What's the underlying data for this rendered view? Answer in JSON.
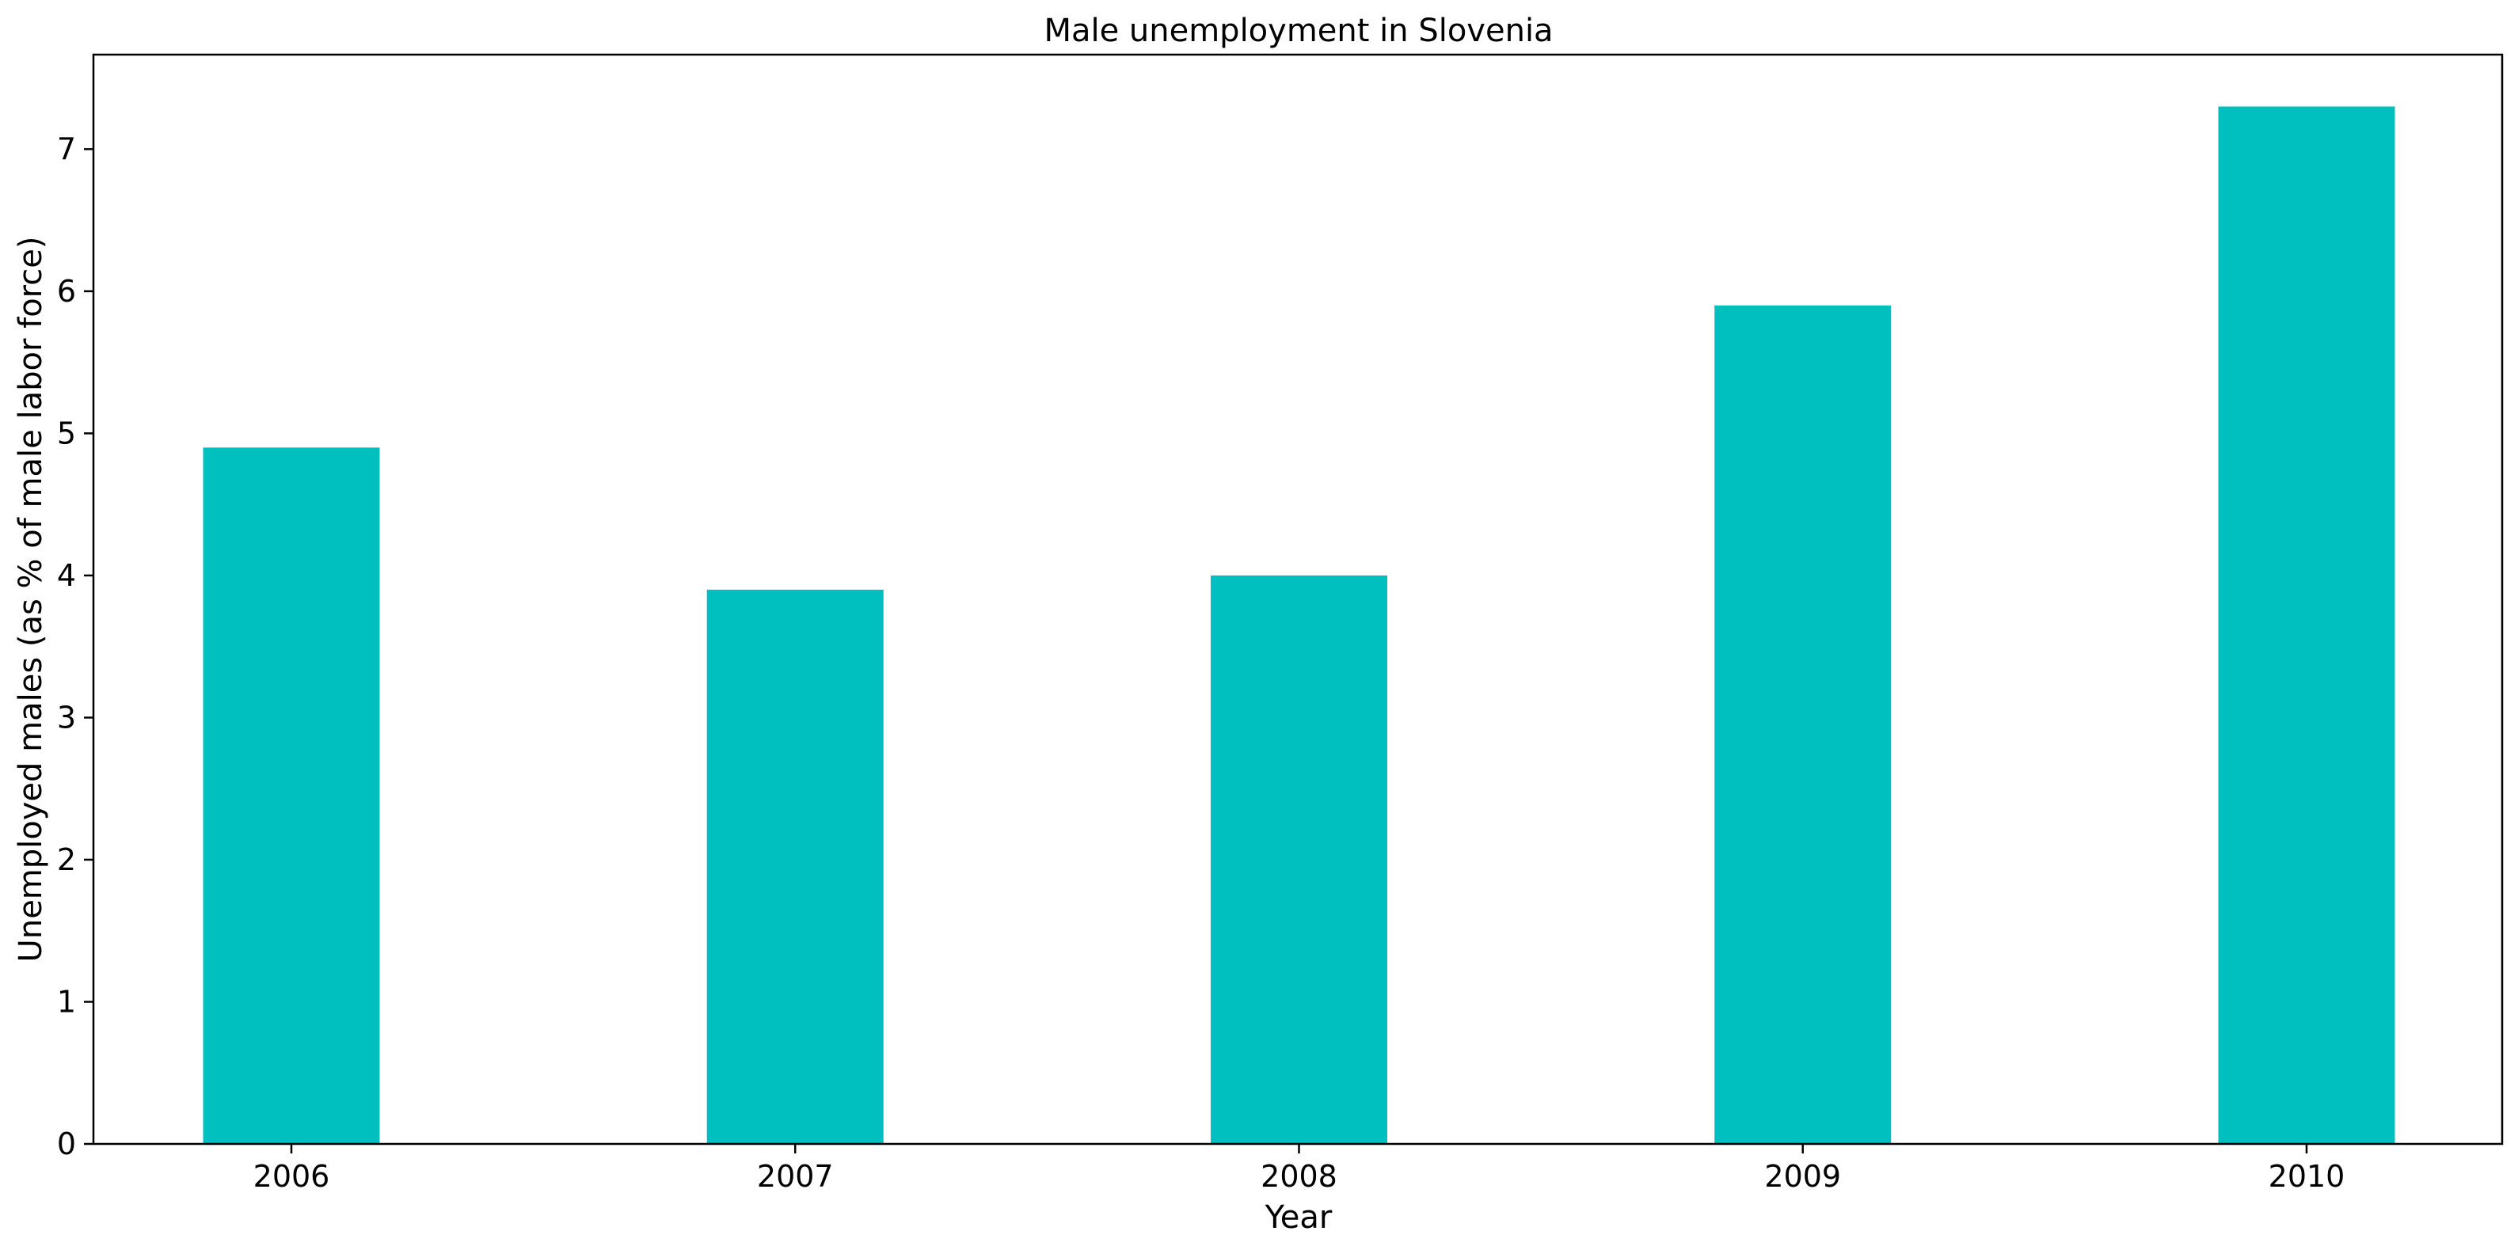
{
  "chart_data": {
    "type": "bar",
    "title": "Male unemployment in Slovenia",
    "xlabel": "Year",
    "ylabel": "Unemployed males (as % of male labor force)",
    "categories": [
      "2006",
      "2007",
      "2008",
      "2009",
      "2010"
    ],
    "values": [
      4.9,
      3.9,
      4.0,
      5.9,
      7.3
    ],
    "yticks": [
      "0",
      "1",
      "2",
      "3",
      "4",
      "5",
      "6",
      "7"
    ],
    "ylim": [
      0,
      7.665
    ],
    "grid": false,
    "legend": "none",
    "bar_color": "#00bfbf"
  }
}
